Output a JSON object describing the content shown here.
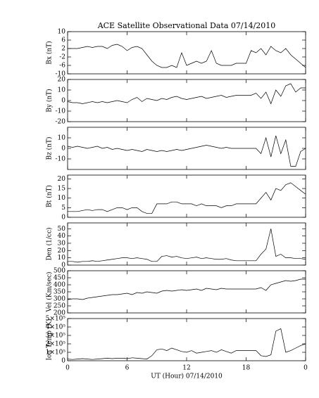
{
  "chart_data": [
    {
      "type": "line",
      "title": "ACE Satellite Observational Data  07/14/2010",
      "ylabel": "Bx (nT)",
      "ylim": [
        -10,
        10
      ],
      "yticks": [
        -10,
        -6,
        -2,
        2,
        6,
        10
      ],
      "color": "#000000",
      "x": [
        0,
        0.5,
        1,
        1.5,
        2,
        2.5,
        3,
        3.5,
        4,
        4.5,
        5,
        5.5,
        6,
        6.5,
        7,
        7.5,
        8,
        8.5,
        9,
        9.5,
        10,
        10.5,
        11,
        11.5,
        12,
        12.5,
        13,
        13.5,
        14,
        14.5,
        15,
        15.5,
        16,
        16.5,
        17,
        17.5,
        18,
        18.5,
        19,
        19.5,
        20,
        20.5,
        21,
        21.5,
        22,
        22.5,
        23,
        23.5,
        24
      ],
      "values": [
        2,
        2,
        2,
        2.5,
        3,
        2.5,
        3,
        3,
        2,
        3.5,
        4,
        3,
        1,
        2.5,
        3,
        2,
        -1,
        -4,
        -6,
        -7,
        -7,
        -6,
        -7,
        0,
        -6,
        -5,
        -4,
        -5,
        -4,
        1,
        -5,
        -6,
        -6,
        -6,
        -5,
        -5,
        -5,
        1,
        0,
        2,
        -1,
        3,
        1,
        0,
        2,
        -1,
        -3,
        -5,
        -7
      ]
    },
    {
      "type": "line",
      "ylabel": "By (nT)",
      "ylim": [
        -20,
        20
      ],
      "yticks": [
        -20,
        -10,
        0,
        10,
        20
      ],
      "color": "#000000",
      "x": [
        0,
        0.5,
        1,
        1.5,
        2,
        2.5,
        3,
        3.5,
        4,
        4.5,
        5,
        5.5,
        6,
        6.5,
        7,
        7.5,
        8,
        8.5,
        9,
        9.5,
        10,
        10.5,
        11,
        11.5,
        12,
        12.5,
        13,
        13.5,
        14,
        14.5,
        15,
        15.5,
        16,
        16.5,
        17,
        17.5,
        18,
        18.5,
        19,
        19.5,
        20,
        20.5,
        21,
        21.5,
        22,
        22.5,
        23,
        23.5,
        24
      ],
      "values": [
        -1,
        -2,
        -2,
        -3,
        -2,
        -1,
        -2,
        -1,
        -2,
        -1,
        0,
        -1,
        -2,
        1,
        3,
        -1,
        2,
        1,
        0,
        2,
        1,
        3,
        4,
        2,
        1,
        2,
        3,
        4,
        2,
        3,
        4,
        5,
        3,
        4,
        5,
        5,
        5,
        5,
        7,
        2,
        8,
        -3,
        10,
        4,
        14,
        16,
        8,
        12,
        12
      ]
    },
    {
      "type": "line",
      "ylabel": "Bz (nT)",
      "ylim": [
        -20,
        20
      ],
      "yticks": [
        -10,
        0,
        10
      ],
      "color": "#000000",
      "x": [
        0,
        0.5,
        1,
        1.5,
        2,
        2.5,
        3,
        3.5,
        4,
        4.5,
        5,
        5.5,
        6,
        6.5,
        7,
        7.5,
        8,
        8.5,
        9,
        9.5,
        10,
        10.5,
        11,
        11.5,
        12,
        12.5,
        13,
        13.5,
        14,
        14.5,
        15,
        15.5,
        16,
        16.5,
        17,
        17.5,
        18,
        18.5,
        19,
        19.5,
        20,
        20.5,
        21,
        21.5,
        22,
        22.5,
        23,
        23.5,
        24
      ],
      "values": [
        2,
        1,
        2,
        1,
        0,
        1,
        2,
        0,
        1,
        -1,
        0,
        -1,
        -2,
        -1,
        -2,
        -3,
        -1,
        -2,
        -3,
        -2,
        -3,
        -2,
        -1,
        -2,
        -1,
        0,
        1,
        2,
        3,
        2,
        1,
        0,
        1,
        0,
        0,
        0,
        0,
        0,
        0,
        -5,
        10,
        -8,
        12,
        -5,
        8,
        -17,
        -17,
        -3,
        0
      ]
    },
    {
      "type": "line",
      "ylabel": "Bt (nT)",
      "ylim": [
        0,
        22
      ],
      "yticks": [
        0,
        5,
        10,
        15,
        20
      ],
      "color": "#000000",
      "x": [
        0,
        0.5,
        1,
        1.5,
        2,
        2.5,
        3,
        3.5,
        4,
        4.5,
        5,
        5.5,
        6,
        6.5,
        7,
        7.5,
        8,
        8.5,
        9,
        9.5,
        10,
        10.5,
        11,
        11.5,
        12,
        12.5,
        13,
        13.5,
        14,
        14.5,
        15,
        15.5,
        16,
        16.5,
        17,
        17.5,
        18,
        18.5,
        19,
        19.5,
        20,
        20.5,
        21,
        21.5,
        22,
        22.5,
        23,
        23.5,
        24
      ],
      "values": [
        3,
        3,
        3,
        3.5,
        4,
        3.5,
        4,
        4,
        3,
        4,
        5,
        5,
        4,
        5,
        5,
        3,
        2,
        2,
        7,
        7,
        7,
        8,
        8,
        7,
        7,
        7,
        6,
        7,
        6,
        6,
        6,
        5,
        6,
        6,
        7,
        7,
        7,
        7,
        7,
        10,
        13,
        9,
        15,
        14,
        17,
        18,
        16,
        14,
        12
      ]
    },
    {
      "type": "line",
      "ylabel": "Den (1/cc)",
      "ylim": [
        0,
        58
      ],
      "yticks": [
        0,
        10,
        20,
        30,
        40,
        50
      ],
      "color": "#000000",
      "x": [
        0,
        0.5,
        1,
        1.5,
        2,
        2.5,
        3,
        3.5,
        4,
        4.5,
        5,
        5.5,
        6,
        6.5,
        7,
        7.5,
        8,
        8.5,
        9,
        9.5,
        10,
        10.5,
        11,
        11.5,
        12,
        12.5,
        13,
        13.5,
        14,
        14.5,
        15,
        15.5,
        16,
        16.5,
        17,
        17.5,
        18,
        18.5,
        19,
        19.5,
        20,
        20.5,
        21,
        21.5,
        22,
        22.5,
        23,
        23.5,
        24
      ],
      "values": [
        5,
        5,
        4,
        5,
        5,
        6,
        5,
        6,
        7,
        8,
        9,
        10,
        10,
        9,
        10,
        9,
        8,
        5,
        5,
        12,
        13,
        11,
        12,
        10,
        9,
        10,
        11,
        9,
        10,
        9,
        8,
        8,
        9,
        7,
        6,
        6,
        6,
        6,
        6,
        15,
        22,
        50,
        12,
        15,
        10,
        10,
        9,
        9,
        8
      ]
    },
    {
      "type": "line",
      "ylabel": "Vel (Km/sec)",
      "ylim": [
        200,
        500
      ],
      "yticks": [
        200,
        250,
        300,
        350,
        400,
        450,
        500
      ],
      "color": "#000000",
      "x": [
        0,
        0.5,
        1,
        1.5,
        2,
        2.5,
        3,
        3.5,
        4,
        4.5,
        5,
        5.5,
        6,
        6.5,
        7,
        7.5,
        8,
        8.5,
        9,
        9.5,
        10,
        10.5,
        11,
        11.5,
        12,
        12.5,
        13,
        13.5,
        14,
        14.5,
        15,
        15.5,
        16,
        16.5,
        17,
        17.5,
        18,
        18.5,
        19,
        19.5,
        20,
        20.5,
        21,
        21.5,
        22,
        22.5,
        23,
        23.5,
        24
      ],
      "values": [
        295,
        300,
        300,
        295,
        305,
        310,
        315,
        320,
        325,
        330,
        330,
        335,
        340,
        330,
        345,
        340,
        350,
        345,
        340,
        355,
        360,
        355,
        360,
        365,
        360,
        365,
        370,
        360,
        375,
        370,
        365,
        375,
        370,
        370,
        370,
        370,
        370,
        370,
        370,
        380,
        360,
        400,
        410,
        420,
        430,
        425,
        430,
        440,
        440
      ]
    },
    {
      "type": "line",
      "ylabel": "Ion Temp (K)",
      "ylim": [
        0,
        500000
      ],
      "yticks": [
        0,
        {
          "value": 100000,
          "label": "1×10⁵"
        },
        {
          "value": 200000,
          "label": "2×10⁵"
        },
        {
          "value": 300000,
          "label": "3×10⁵"
        },
        {
          "value": 400000,
          "label": "4×10⁵"
        },
        {
          "value": 500000,
          "label": "5×10⁵"
        }
      ],
      "color": "#000000",
      "xlabel": "UT (Hour)  07/14/2010",
      "xlim": [
        0,
        24
      ],
      "xticks": [
        0,
        6,
        12,
        18,
        {
          "value": 24,
          "label": "0"
        }
      ],
      "x": [
        0,
        0.5,
        1,
        1.5,
        2,
        2.5,
        3,
        3.5,
        4,
        4.5,
        5,
        5.5,
        6,
        6.5,
        7,
        7.5,
        8,
        8.5,
        9,
        9.5,
        10,
        10.5,
        11,
        11.5,
        12,
        12.5,
        13,
        13.5,
        14,
        14.5,
        15,
        15.5,
        16,
        16.5,
        17,
        17.5,
        18,
        18.5,
        19,
        19.5,
        20,
        20.5,
        21,
        21.5,
        22,
        22.5,
        23,
        23.5,
        24
      ],
      "values": [
        20000,
        15000,
        20000,
        25000,
        20000,
        15000,
        20000,
        25000,
        30000,
        25000,
        30000,
        30000,
        25000,
        35000,
        30000,
        25000,
        20000,
        60000,
        130000,
        140000,
        120000,
        150000,
        130000,
        110000,
        100000,
        120000,
        90000,
        100000,
        110000,
        120000,
        100000,
        130000,
        110000,
        90000,
        120000,
        120000,
        120000,
        120000,
        120000,
        60000,
        50000,
        70000,
        350000,
        380000,
        100000,
        120000,
        150000,
        180000,
        200000
      ]
    }
  ]
}
